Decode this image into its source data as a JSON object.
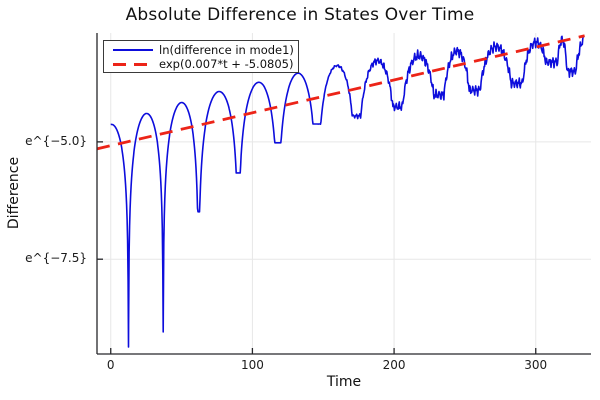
{
  "chart_data": {
    "type": "line",
    "title": "Absolute Difference in States Over Time",
    "xlabel": "Time",
    "ylabel": "Difference",
    "grid": true,
    "legend_position": "top-left",
    "xlim": [
      -9.7,
      339
    ],
    "ylim_ln": [
      -9.52,
      -2.68
    ],
    "x_ticks": [
      {
        "v": 0,
        "label": "0"
      },
      {
        "v": 100,
        "label": "100"
      },
      {
        "v": 200,
        "label": "200"
      },
      {
        "v": 300,
        "label": "300"
      }
    ],
    "y_ticks": [
      {
        "v": -5.0,
        "label": "e^{−5.0}"
      },
      {
        "v": -7.5,
        "label": "e^{−7.5}"
      }
    ],
    "series": [
      {
        "name": "ln(difference in mode1)",
        "color": "#0d0ddc",
        "style": "solid",
        "width": 1.6,
        "model": {
          "envelope_slope": 0.007,
          "envelope_intercept": -5.0805,
          "peak_offset_keys": [
            [
              0,
              0.45
            ],
            [
              70,
              0.62
            ],
            [
              150,
              0.62
            ],
            [
              290,
              0.15
            ],
            [
              318,
              0.02
            ],
            [
              335,
              0.02
            ]
          ],
          "dips": [
            [
              12.5,
              -9.37
            ],
            [
              37,
              -9.05
            ],
            [
              62,
              -6.49
            ],
            [
              90,
              -5.66
            ],
            [
              118,
              -5.02
            ],
            [
              145.5,
              -4.62
            ],
            [
              173.5,
              -4.45
            ],
            [
              202.5,
              -4.25
            ],
            [
              232,
              -4.0
            ],
            [
              256.5,
              -3.9
            ],
            [
              287,
              -3.75
            ],
            [
              313,
              -3.3
            ],
            [
              324,
              -3.5
            ]
          ],
          "virtual_first_dip_t": -12.5,
          "virtual_last_dip_t": 350,
          "t_range": [
            0,
            334
          ],
          "sample_step": 0.35,
          "v_max": -2.75,
          "noise": {
            "onset": 145,
            "full": 210,
            "amp": 0.13,
            "components": [
              [
                0.5,
                2.9,
                1.7
              ],
              [
                0.33,
                6.3,
                0.4
              ],
              [
                0.17,
                12.7,
                2.1
              ]
            ]
          }
        }
      },
      {
        "name": "exp(0.007*t + -5.0805)",
        "color": "#ec2418",
        "style": "dashed",
        "width": 2.8,
        "dash": [
          13,
          8.5
        ],
        "fit": {
          "slope": 0.007,
          "intercept": -5.0805,
          "t_range": [
            -9.7,
            334.5
          ]
        }
      }
    ]
  },
  "colors": {
    "background": "#ffffff",
    "grid": "#e7e7e7",
    "axis": "#26262a",
    "text": "#111111",
    "legend_border": "#3a3a3a",
    "series_blue": "#0d0ddc",
    "series_red": "#ec2418"
  }
}
